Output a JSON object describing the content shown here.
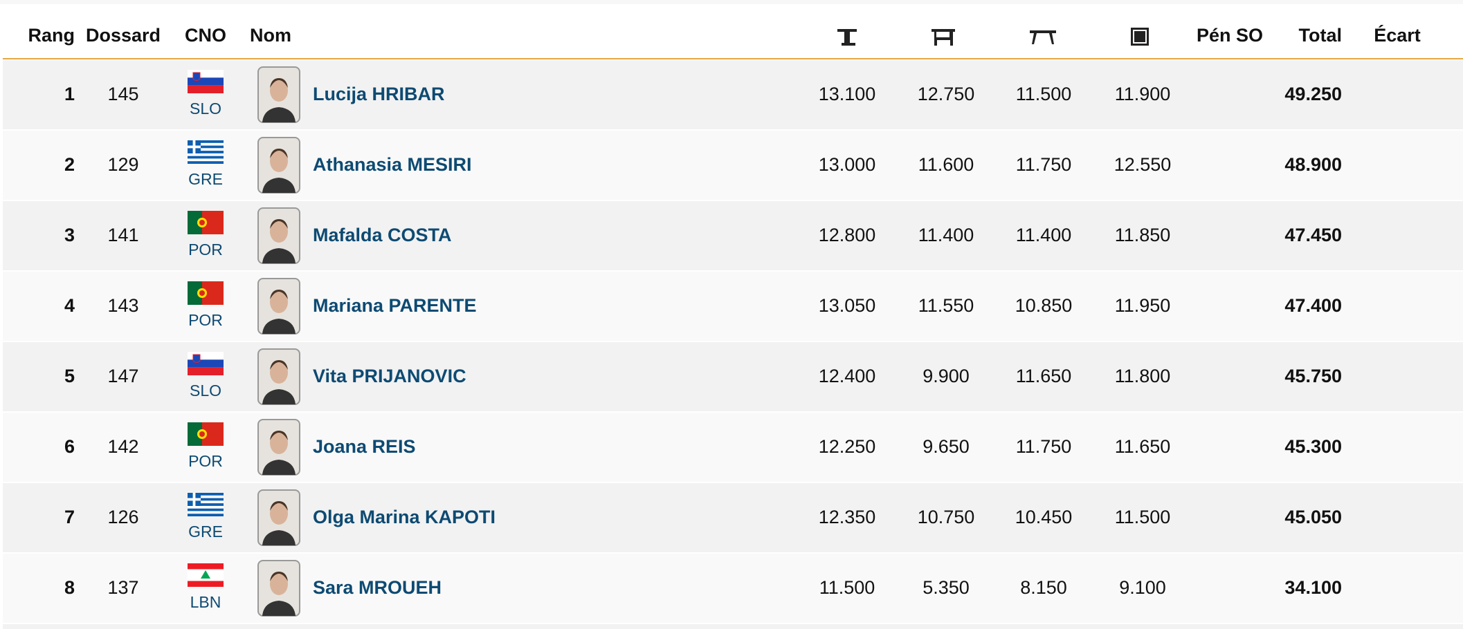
{
  "header": {
    "rank": "Rang",
    "bib": "Dossard",
    "noc": "CNO",
    "name": "Nom",
    "penalty": "Pén SO",
    "total": "Total",
    "gap": "Écart"
  },
  "rows": [
    [
      "1",
      "145",
      "SLO",
      "Lucija HRIBAR",
      "13.100",
      "12.750",
      "11.500",
      "11.900",
      "49.250"
    ],
    [
      "2",
      "129",
      "GRE",
      "Athanasia MESIRI",
      "13.000",
      "11.600",
      "11.750",
      "12.550",
      "48.900"
    ],
    [
      "3",
      "141",
      "POR",
      "Mafalda COSTA",
      "12.800",
      "11.400",
      "11.400",
      "11.850",
      "47.450"
    ],
    [
      "4",
      "143",
      "POR",
      "Mariana PARENTE",
      "13.050",
      "11.550",
      "10.850",
      "11.950",
      "47.400"
    ],
    [
      "5",
      "147",
      "SLO",
      "Vita PRIJANOVIC",
      "12.400",
      "9.900",
      "11.650",
      "11.800",
      "45.750"
    ],
    [
      "6",
      "142",
      "POR",
      "Joana REIS",
      "12.250",
      "9.650",
      "11.750",
      "11.650",
      "45.300"
    ],
    [
      "7",
      "126",
      "GRE",
      "Olga Marina KAPOTI",
      "12.350",
      "10.750",
      "10.450",
      "11.500",
      "45.050"
    ],
    [
      "8",
      "137",
      "LBN",
      "Sara MROUEH",
      "11.500",
      "5.350",
      "8.150",
      "9.100",
      "34.100"
    ]
  ]
}
